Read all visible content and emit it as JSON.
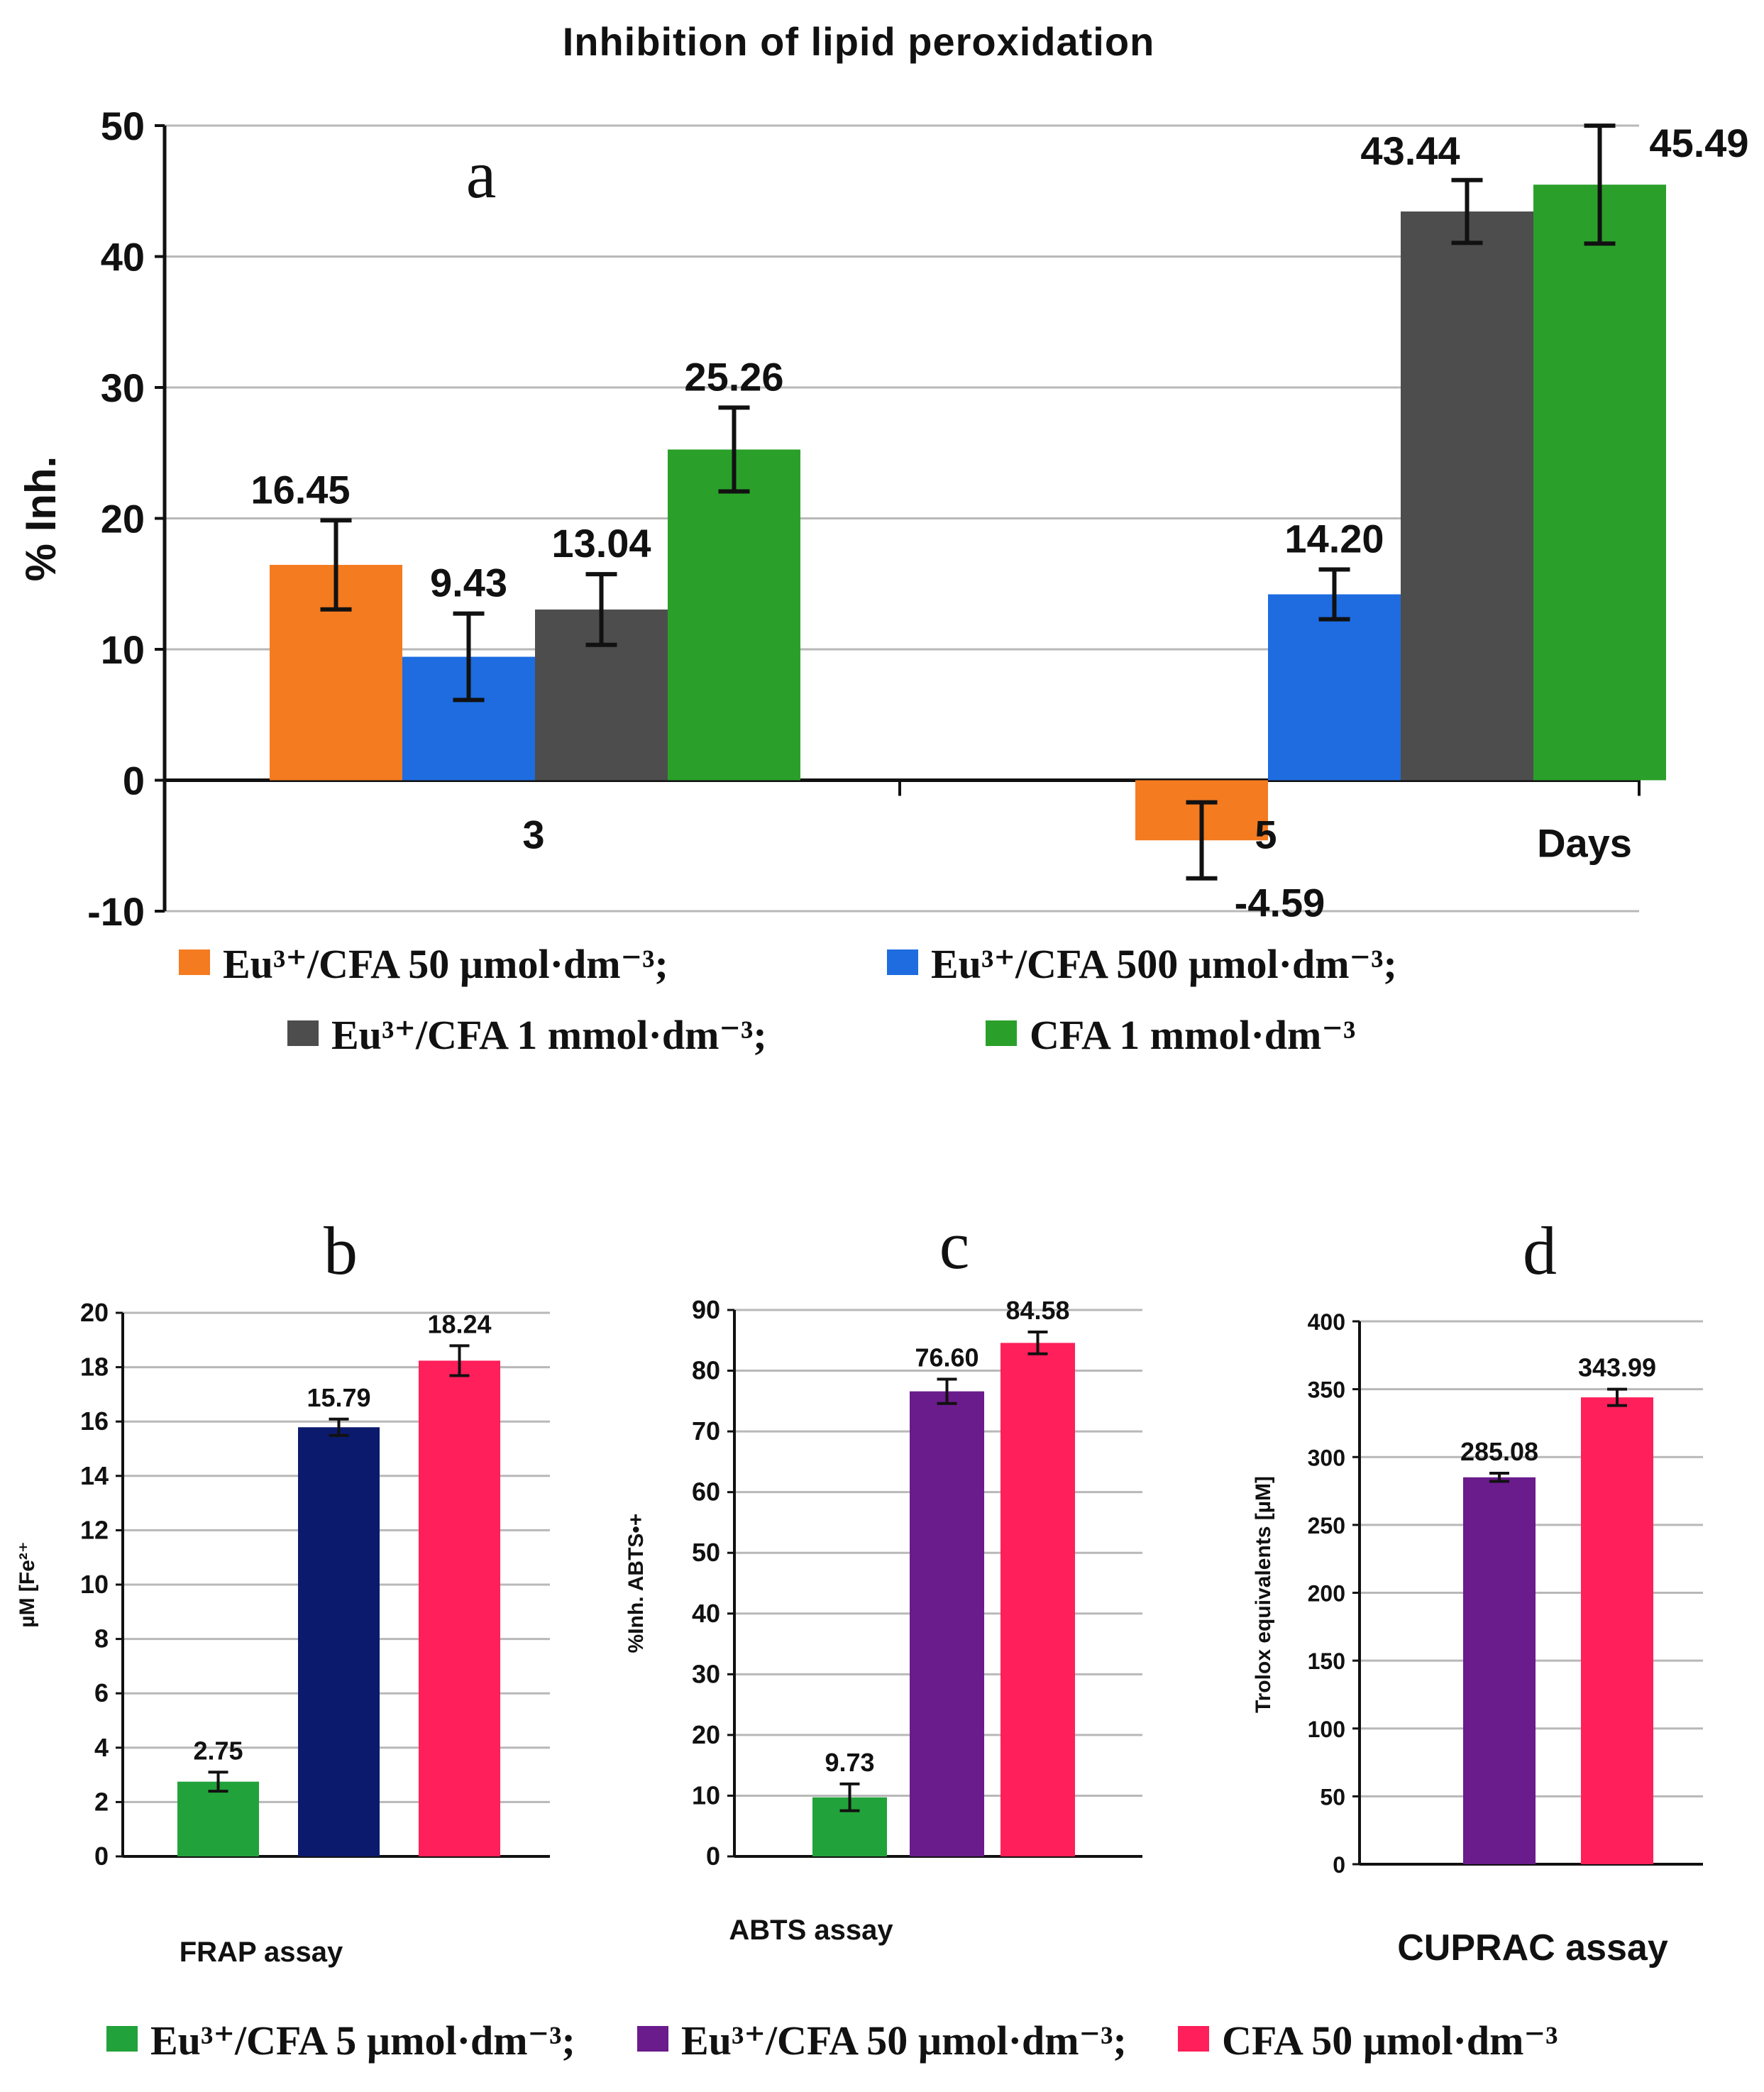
{
  "chart_data": [
    {
      "id": "a",
      "type": "bar",
      "title": "Inhibition of lipid peroxidation",
      "panel_letter": "a",
      "ylabel": "% Inh.",
      "xlabel": "Days",
      "ylim": [
        -10,
        50
      ],
      "yticks": [
        -10,
        0,
        10,
        20,
        30,
        40,
        50
      ],
      "grid": true,
      "categories": [
        "3",
        "5"
      ],
      "series": [
        {
          "name": "Eu³⁺/CFA 50 µmol·dm⁻³;",
          "color": "#f47b20",
          "values": [
            16.45,
            -4.59
          ],
          "errors": [
            3.4,
            2.9
          ],
          "labels": [
            "16.45",
            "-4.59"
          ]
        },
        {
          "name": "Eu³⁺/CFA 500 µmol·dm⁻³;",
          "color": "#1e6ce0",
          "values": [
            9.43,
            14.2
          ],
          "errors": [
            3.3,
            1.9
          ],
          "labels": [
            "9.43",
            "14.20"
          ]
        },
        {
          "name": "Eu³⁺/CFA 1 mmol·dm⁻³;",
          "color": "#4d4d4d",
          "values": [
            13.04,
            43.44
          ],
          "errors": [
            2.7,
            2.4
          ],
          "labels": [
            "13.04",
            "43.44"
          ]
        },
        {
          "name": "CFA 1 mmol·dm⁻³",
          "color": "#2aa02a",
          "values": [
            25.26,
            45.49
          ],
          "errors": [
            3.2,
            4.5
          ],
          "labels": [
            "25.26",
            "45.49"
          ]
        }
      ]
    },
    {
      "id": "b",
      "type": "bar",
      "panel_letter": "b",
      "ylabel": "µM [Fe²⁺",
      "xlabel": "FRAP assay",
      "ylim": [
        0,
        20
      ],
      "yticks": [
        0,
        2,
        4,
        6,
        8,
        10,
        12,
        14,
        16,
        18,
        20
      ],
      "grid": true,
      "values": [
        2.75,
        15.79,
        18.24
      ],
      "errors": [
        0.35,
        0.3,
        0.55
      ],
      "labels": [
        "2.75",
        "15.79",
        "18.24"
      ],
      "colors": [
        "#22a23a",
        "#0c1a6e",
        "#ff1f5a"
      ]
    },
    {
      "id": "c",
      "type": "bar",
      "panel_letter": "c",
      "ylabel": "%Inh. ABTS•+",
      "xlabel": "ABTS assay",
      "ylim": [
        0,
        90
      ],
      "yticks": [
        0,
        10,
        20,
        30,
        40,
        50,
        60,
        70,
        80,
        90
      ],
      "grid": true,
      "values": [
        9.73,
        76.6,
        84.58
      ],
      "errors": [
        2.2,
        2.0,
        1.8
      ],
      "labels": [
        "9.73",
        "76.60",
        "84.58"
      ],
      "colors": [
        "#22a23a",
        "#6a1b8c",
        "#ff1f5a"
      ]
    },
    {
      "id": "d",
      "type": "bar",
      "panel_letter": "d",
      "ylabel": "Trolox equivalents [µM]",
      "xlabel": "CUPRAC assay",
      "ylim": [
        0,
        400
      ],
      "yticks": [
        0,
        50,
        100,
        150,
        200,
        250,
        300,
        350,
        400
      ],
      "grid": true,
      "values": [
        285.08,
        343.99
      ],
      "errors": [
        3.0,
        6.0
      ],
      "labels": [
        "285.08",
        "343.99"
      ],
      "colors": [
        "#6a1b8c",
        "#ff1f5a"
      ]
    }
  ],
  "legend_bottom": [
    {
      "name": "Eu³⁺/CFA 5 µmol·dm⁻³;",
      "color": "#22a23a"
    },
    {
      "name": "Eu³⁺/CFA 50 µmol·dm⁻³;",
      "color": "#6a1b8c"
    },
    {
      "name": "CFA 50 µmol·dm⁻³",
      "color": "#ff1f5a"
    }
  ]
}
